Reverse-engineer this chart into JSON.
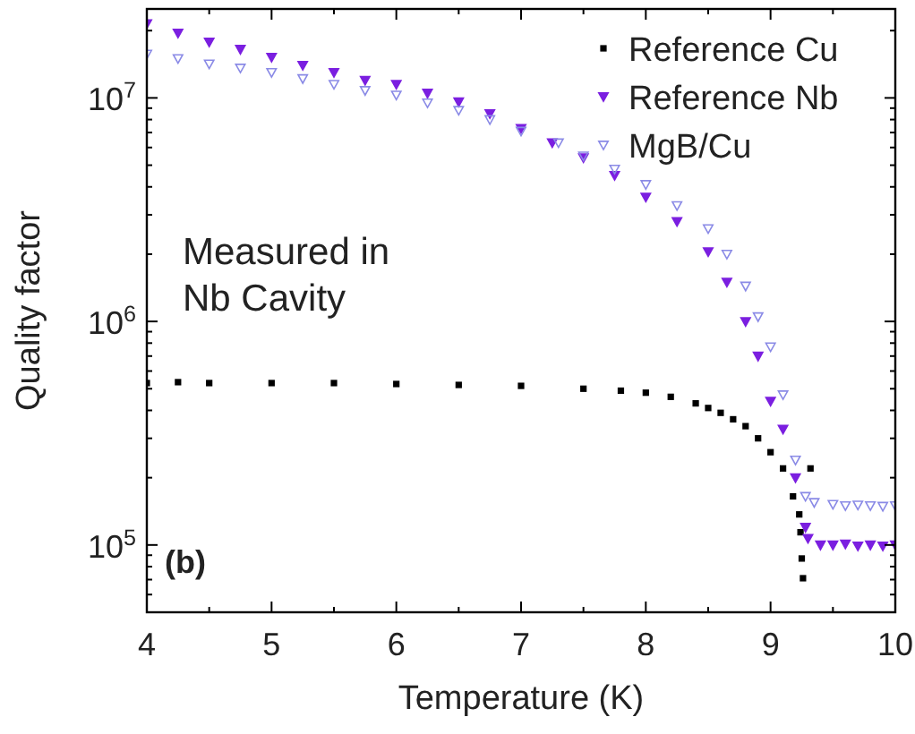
{
  "chart_data": {
    "type": "scatter",
    "xlabel": "Temperature (K)",
    "ylabel": "Quality factor",
    "log": "y",
    "grid": false,
    "legend": "top right",
    "xlim": [
      4,
      10
    ],
    "ylim": [
      50000,
      25000000
    ],
    "xticks": [
      4,
      5,
      6,
      7,
      8,
      9,
      10
    ],
    "yticks": [
      {
        "value": 100000,
        "label": "10$^{5}$"
      },
      {
        "value": 1000000,
        "label": "10$^{6}$"
      },
      {
        "value": 10000000,
        "label": "10$^{7}$"
      }
    ],
    "annotations": [
      "Measured in\nNb Cavity",
      "(b)"
    ],
    "series": [
      {
        "name": "Reference Cu",
        "color": "#000000",
        "marker": "square",
        "x": [
          4.0,
          4.25,
          4.5,
          5.0,
          5.5,
          6.0,
          6.5,
          7.0,
          7.5,
          7.8,
          8.0,
          8.2,
          8.4,
          8.5,
          8.6,
          8.7,
          8.8,
          8.9,
          9.0,
          9.1,
          9.18,
          9.23,
          9.24,
          9.25,
          9.26,
          9.32
        ],
        "values": [
          530000,
          535000,
          530000,
          530000,
          530000,
          525000,
          520000,
          515000,
          500000,
          490000,
          480000,
          460000,
          430000,
          410000,
          390000,
          365000,
          340000,
          300000,
          260000,
          220000,
          165000,
          137000,
          114000,
          87000,
          71000,
          220000
        ]
      },
      {
        "name": "Reference Nb",
        "color": "#7b1fe0",
        "marker": "triangle",
        "x": [
          4.0,
          4.25,
          4.5,
          4.75,
          5.0,
          5.25,
          5.5,
          5.75,
          6.0,
          6.25,
          6.5,
          6.75,
          7.0,
          7.25,
          7.5,
          7.75,
          8.0,
          8.25,
          8.5,
          8.65,
          8.8,
          8.9,
          9.0,
          9.1,
          9.2,
          9.28,
          9.3,
          9.4,
          9.5,
          9.6,
          9.7,
          9.8,
          9.9,
          10.0
        ],
        "values": [
          21500000,
          19500000,
          17800000,
          16500000,
          15200000,
          14000000,
          13000000,
          12000000,
          11500000,
          10500000,
          9600000,
          8500000,
          7300000,
          6300000,
          5400000,
          4500000,
          3600000,
          2800000,
          2050000,
          1500000,
          1000000,
          700000,
          440000,
          330000,
          200000,
          120000,
          107000,
          100000,
          100000,
          101000,
          99000,
          100000,
          99000,
          100000
        ]
      },
      {
        "name": "MgB/Cu",
        "color": "#8a8ae6",
        "marker": "triangle",
        "x": [
          4.0,
          4.25,
          4.5,
          4.75,
          5.0,
          5.25,
          5.5,
          5.75,
          6.0,
          6.25,
          6.5,
          6.75,
          7.0,
          7.3,
          7.5,
          7.75,
          8.0,
          8.25,
          8.5,
          8.65,
          8.8,
          8.9,
          9.0,
          9.1,
          9.2,
          9.28,
          9.35,
          9.5,
          9.6,
          9.7,
          9.8,
          9.9,
          10.0
        ],
        "values": [
          15700000,
          15000000,
          14200000,
          13600000,
          13000000,
          12200000,
          11500000,
          10800000,
          10300000,
          9500000,
          8800000,
          8000000,
          7100000,
          6300000,
          5500000,
          4800000,
          4100000,
          3300000,
          2600000,
          2000000,
          1440000,
          1050000,
          770000,
          470000,
          240000,
          165000,
          155000,
          152000,
          150000,
          151000,
          150000,
          149000,
          150000
        ]
      }
    ]
  }
}
